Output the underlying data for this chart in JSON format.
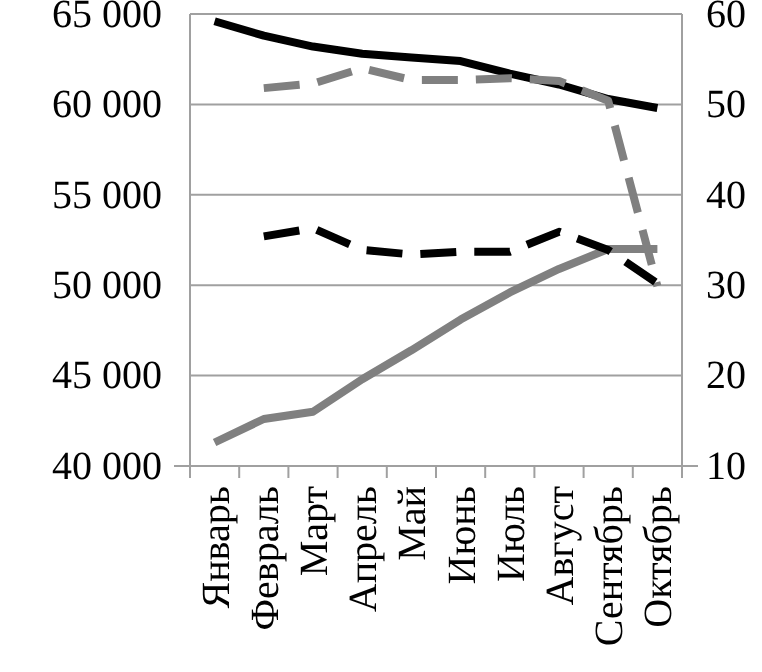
{
  "chart_data": {
    "type": "line",
    "categories": [
      "Январь",
      "Февраль",
      "Март",
      "Апрель",
      "Май",
      "Июнь",
      "Июль",
      "Август",
      "Сентябрь",
      "Октябрь"
    ],
    "series": [
      {
        "color": "#000000",
        "line_style": "solid",
        "values": [
          64600,
          63800,
          63200,
          62800,
          62600,
          62400,
          61700,
          61100,
          60300,
          59800
        ]
      },
      {
        "color": "#808080",
        "line_style": "solid",
        "values": [
          41300,
          42600,
          43000,
          44800,
          46400,
          48100,
          49600,
          50900,
          52000,
          52000
        ]
      },
      {
        "color": "#808080",
        "line_style": "dashed",
        "axis": "y2",
        "values": [
          null,
          51.8,
          52.3,
          54.0,
          52.7,
          52.7,
          52.9,
          52.6,
          50.4,
          29.9
        ]
      },
      {
        "color": "#000000",
        "line_style": "dashed",
        "axis": "y2",
        "values": [
          null,
          35.4,
          36.3,
          33.9,
          33.4,
          33.7,
          33.7,
          35.9,
          33.9,
          30.2
        ]
      }
    ],
    "ylim": [
      40000,
      65000
    ],
    "yticks": [
      {
        "value": 40000,
        "label": "40 000"
      },
      {
        "value": 45000,
        "label": "45 000"
      },
      {
        "value": 50000,
        "label": "50 000"
      },
      {
        "value": 55000,
        "label": "55 000"
      },
      {
        "value": 60000,
        "label": "60 000"
      },
      {
        "value": 65000,
        "label": "65 000"
      }
    ],
    "y2lim": [
      10,
      60
    ],
    "y2ticks": [
      10,
      20,
      30,
      40,
      50,
      60
    ],
    "grid": "y",
    "marker": "none"
  }
}
